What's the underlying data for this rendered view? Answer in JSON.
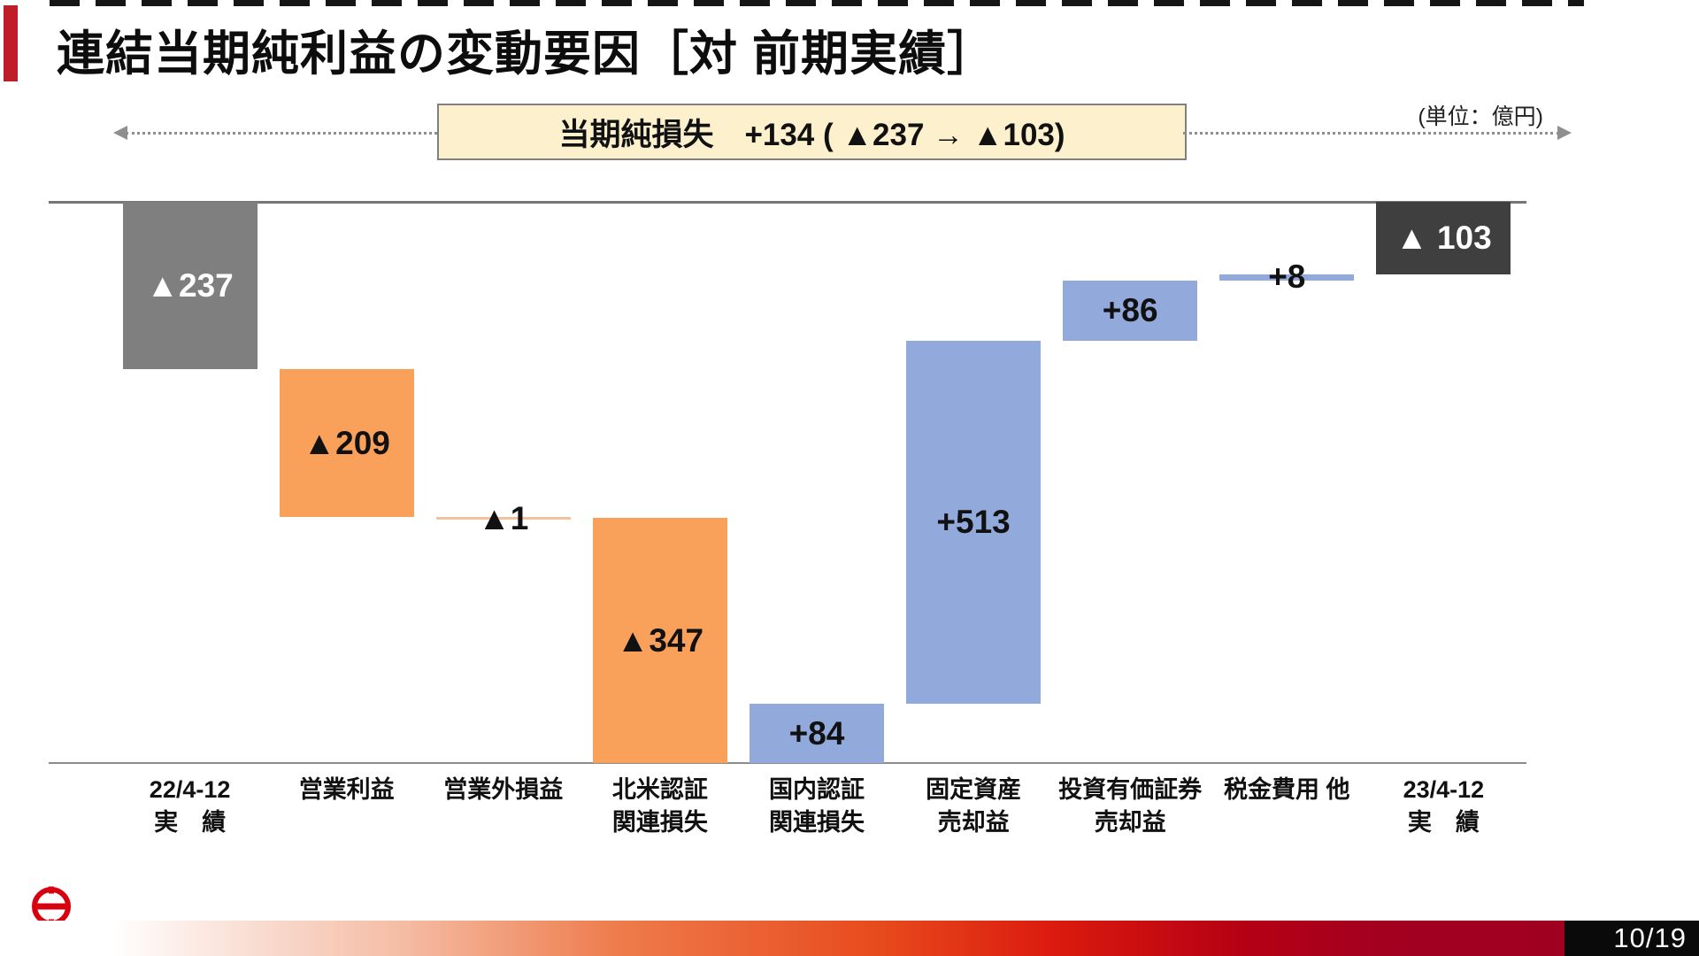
{
  "header": {
    "title": "連結当期純利益の変動要因［対 前期実績］",
    "unit_note": "(単位：億円)",
    "banner_text": "当期純損失　+134 ( ▲237 → ▲103)"
  },
  "footer": {
    "logo_text": "HINO",
    "page_number": "10/19"
  },
  "style": {
    "accent_red": "#BF1E28",
    "banner_bg": "#FCF0CD",
    "banner_border": "#808080",
    "axis_color": "#767676",
    "brand_red": "#D7000F",
    "footer_black": "#0A0A0A"
  },
  "chart_data": {
    "type": "waterfall",
    "title": "連結当期純利益の変動要因［対 前期実績］",
    "unit_note": "(単位：億円)",
    "annotation": "当期純損失　+134 ( ▲237 → ▲103)",
    "net_change": 134,
    "ylim": [
      -800,
      0
    ],
    "grid": false,
    "legend": false,
    "bars": [
      {
        "label_lines": [
          "22/4-12",
          "実　績"
        ],
        "value": -237,
        "display": "▲237",
        "kind": "total_start",
        "color": "#7F7F7F",
        "label_color": "#FFFFFF"
      },
      {
        "label_lines": [
          "営業利益"
        ],
        "value": -209,
        "display": "▲209",
        "kind": "delta",
        "color": "#F9A05A",
        "label_color": "#111111"
      },
      {
        "label_lines": [
          "営業外損益"
        ],
        "value": -1,
        "display": "▲1",
        "kind": "delta",
        "color": "#F2C29C",
        "label_color": "#111111"
      },
      {
        "label_lines": [
          "北米認証",
          "関連損失"
        ],
        "value": -347,
        "display": "▲347",
        "kind": "delta",
        "color": "#F9A05A",
        "label_color": "#111111"
      },
      {
        "label_lines": [
          "国内認証",
          "関連損失"
        ],
        "value": 84,
        "display": "+84",
        "kind": "delta",
        "color": "#92A9DB",
        "label_color": "#111111"
      },
      {
        "label_lines": [
          "固定資産",
          "売却益"
        ],
        "value": 513,
        "display": "+513",
        "kind": "delta",
        "color": "#92A9DB",
        "label_color": "#111111"
      },
      {
        "label_lines": [
          "投資有価証券",
          "売却益"
        ],
        "value": 86,
        "display": "+86",
        "kind": "delta",
        "color": "#92A9DB",
        "label_color": "#111111"
      },
      {
        "label_lines": [
          "税金費用 他"
        ],
        "value": 8,
        "display": "+8",
        "kind": "delta",
        "color": "#92A9DB",
        "label_color": "#111111"
      },
      {
        "label_lines": [
          "23/4-12",
          "実　績"
        ],
        "value": -103,
        "display": "▲ 103",
        "kind": "total_end",
        "color": "#3F3F3F",
        "label_color": "#FFFFFF"
      }
    ]
  }
}
